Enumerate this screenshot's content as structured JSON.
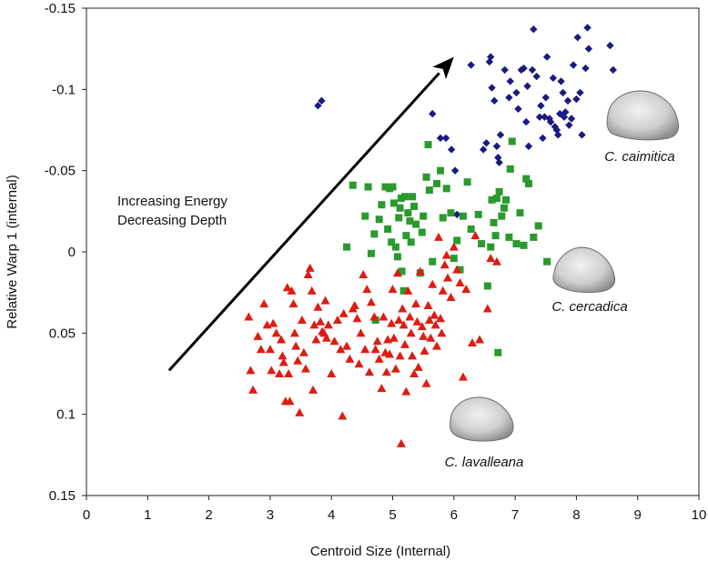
{
  "chart_data": {
    "type": "scatter",
    "xlabel": "Centroid Size (Internal)",
    "ylabel": "Relative Warp 1 (internal)",
    "xlim": [
      0,
      10
    ],
    "ylim": [
      0.15,
      -0.15
    ],
    "y_inverted": true,
    "x_ticks": [
      0,
      1,
      2,
      3,
      4,
      5,
      6,
      7,
      8,
      9,
      10
    ],
    "x_tick_labels": [
      "0",
      "1",
      "2",
      "3",
      "4",
      "5",
      "6",
      "7",
      "8",
      "9",
      "10"
    ],
    "y_ticks": [
      -0.15,
      -0.1,
      -0.05,
      0,
      0.05,
      0.1,
      0.15
    ],
    "y_tick_labels": [
      "-0.15",
      "-0.1",
      "-0.05",
      "0",
      "0.05",
      "0.1",
      "0.15"
    ],
    "grid": false,
    "annotation_lines": [
      "Increasing Energy",
      "Decreasing Depth"
    ],
    "arrow": {
      "from": [
        1.35,
        0.073
      ],
      "to": [
        6.0,
        -0.12
      ]
    },
    "series": [
      {
        "name": "C. caimitica",
        "marker": "diamond",
        "color": "#1a1a80",
        "points": [
          [
            3.78,
            -0.09
          ],
          [
            3.84,
            -0.093
          ],
          [
            5.65,
            -0.085
          ],
          [
            5.78,
            -0.07
          ],
          [
            5.87,
            -0.07
          ],
          [
            5.96,
            -0.063
          ],
          [
            6.02,
            -0.05
          ],
          [
            6.05,
            -0.023
          ],
          [
            6.28,
            -0.115
          ],
          [
            6.48,
            -0.063
          ],
          [
            6.53,
            -0.067
          ],
          [
            6.58,
            -0.117
          ],
          [
            6.6,
            -0.12
          ],
          [
            6.62,
            -0.101
          ],
          [
            6.66,
            -0.093
          ],
          [
            6.7,
            -0.065
          ],
          [
            6.72,
            -0.058
          ],
          [
            6.74,
            -0.055
          ],
          [
            6.76,
            -0.072
          ],
          [
            6.83,
            -0.112
          ],
          [
            6.9,
            -0.095
          ],
          [
            6.92,
            -0.105
          ],
          [
            7.02,
            -0.098
          ],
          [
            7.05,
            -0.088
          ],
          [
            7.1,
            -0.112
          ],
          [
            7.14,
            -0.113
          ],
          [
            7.18,
            -0.08
          ],
          [
            7.2,
            -0.102
          ],
          [
            7.22,
            -0.065
          ],
          [
            7.28,
            -0.112
          ],
          [
            7.3,
            -0.137
          ],
          [
            7.35,
            -0.108
          ],
          [
            7.4,
            -0.083
          ],
          [
            7.42,
            -0.09
          ],
          [
            7.45,
            -0.07
          ],
          [
            7.48,
            -0.083
          ],
          [
            7.5,
            -0.095
          ],
          [
            7.52,
            -0.12
          ],
          [
            7.56,
            -0.082
          ],
          [
            7.58,
            -0.08
          ],
          [
            7.62,
            -0.107
          ],
          [
            7.65,
            -0.077
          ],
          [
            7.68,
            -0.075
          ],
          [
            7.7,
            -0.072
          ],
          [
            7.73,
            -0.085
          ],
          [
            7.75,
            -0.105
          ],
          [
            7.78,
            -0.098
          ],
          [
            7.8,
            -0.083
          ],
          [
            7.82,
            -0.086
          ],
          [
            7.86,
            -0.093
          ],
          [
            7.88,
            -0.078
          ],
          [
            7.92,
            -0.082
          ],
          [
            7.95,
            -0.115
          ],
          [
            8.0,
            -0.094
          ],
          [
            8.02,
            -0.132
          ],
          [
            8.06,
            -0.098
          ],
          [
            8.09,
            -0.072
          ],
          [
            8.15,
            -0.113
          ],
          [
            8.18,
            -0.138
          ],
          [
            8.2,
            -0.125
          ],
          [
            8.55,
            -0.127
          ],
          [
            8.6,
            -0.112
          ]
        ]
      },
      {
        "name": "C. cercadica",
        "marker": "square",
        "color": "#2a9a2e",
        "points": [
          [
            4.25,
            -0.003
          ],
          [
            4.35,
            -0.041
          ],
          [
            4.55,
            -0.022
          ],
          [
            4.6,
            -0.04
          ],
          [
            4.65,
            0.001
          ],
          [
            4.7,
            -0.011
          ],
          [
            4.72,
            0.042
          ],
          [
            4.78,
            -0.02
          ],
          [
            4.82,
            -0.029
          ],
          [
            4.88,
            -0.04
          ],
          [
            4.92,
            -0.014
          ],
          [
            4.95,
            -0.039
          ],
          [
            4.98,
            -0.006
          ],
          [
            5.0,
            -0.04
          ],
          [
            5.02,
            -0.03
          ],
          [
            5.05,
            -0.003
          ],
          [
            5.08,
            0.003
          ],
          [
            5.1,
            -0.021
          ],
          [
            5.12,
            -0.027
          ],
          [
            5.14,
            -0.033
          ],
          [
            5.15,
            0.012
          ],
          [
            5.18,
            0.024
          ],
          [
            5.2,
            -0.034
          ],
          [
            5.22,
            -0.01
          ],
          [
            5.25,
            -0.024
          ],
          [
            5.28,
            -0.019
          ],
          [
            5.3,
            -0.006
          ],
          [
            5.32,
            -0.034
          ],
          [
            5.35,
            -0.028
          ],
          [
            5.38,
            -0.017
          ],
          [
            5.45,
            0.013
          ],
          [
            5.48,
            -0.012
          ],
          [
            5.5,
            -0.022
          ],
          [
            5.55,
            -0.046
          ],
          [
            5.58,
            -0.066
          ],
          [
            5.6,
            -0.038
          ],
          [
            5.65,
            0.006
          ],
          [
            5.72,
            -0.042
          ],
          [
            5.78,
            -0.05
          ],
          [
            5.82,
            -0.021
          ],
          [
            5.88,
            -0.039
          ],
          [
            5.95,
            -0.024
          ],
          [
            6.0,
            0.004
          ],
          [
            6.05,
            -0.007
          ],
          [
            6.1,
            0.011
          ],
          [
            6.15,
            -0.022
          ],
          [
            6.22,
            -0.043
          ],
          [
            6.28,
            -0.014
          ],
          [
            6.4,
            -0.023
          ],
          [
            6.45,
            -0.005
          ],
          [
            6.55,
            0.021
          ],
          [
            6.6,
            -0.003
          ],
          [
            6.62,
            -0.032
          ],
          [
            6.65,
            -0.018
          ],
          [
            6.68,
            -0.01
          ],
          [
            6.7,
            -0.033
          ],
          [
            6.72,
            0.062
          ],
          [
            6.74,
            -0.037
          ],
          [
            6.78,
            -0.022
          ],
          [
            6.82,
            -0.027
          ],
          [
            6.85,
            -0.032
          ],
          [
            6.9,
            -0.009
          ],
          [
            6.92,
            -0.051
          ],
          [
            6.95,
            -0.068
          ],
          [
            7.02,
            -0.005
          ],
          [
            7.08,
            -0.024
          ],
          [
            7.14,
            -0.004
          ],
          [
            7.18,
            -0.045
          ],
          [
            7.22,
            -0.042
          ],
          [
            7.3,
            -0.009
          ],
          [
            7.38,
            -0.016
          ],
          [
            7.52,
            0.006
          ]
        ]
      },
      {
        "name": "C. lavalleana",
        "marker": "triangle",
        "color": "#dd1c12",
        "points": [
          [
            2.65,
            0.04
          ],
          [
            2.68,
            0.073
          ],
          [
            2.72,
            0.085
          ],
          [
            2.8,
            0.052
          ],
          [
            2.85,
            0.06
          ],
          [
            2.9,
            0.032
          ],
          [
            2.95,
            0.045
          ],
          [
            3.0,
            0.06
          ],
          [
            3.02,
            0.073
          ],
          [
            3.05,
            0.044
          ],
          [
            3.1,
            0.05
          ],
          [
            3.15,
            0.075
          ],
          [
            3.18,
            0.054
          ],
          [
            3.2,
            0.064
          ],
          [
            3.22,
            0.068
          ],
          [
            3.25,
            0.092
          ],
          [
            3.28,
            0.022
          ],
          [
            3.3,
            0.075
          ],
          [
            3.32,
            0.092
          ],
          [
            3.35,
            0.024
          ],
          [
            3.38,
            0.032
          ],
          [
            3.4,
            0.05
          ],
          [
            3.42,
            0.058
          ],
          [
            3.45,
            0.067
          ],
          [
            3.48,
            0.099
          ],
          [
            3.52,
            0.042
          ],
          [
            3.55,
            0.062
          ],
          [
            3.58,
            0.072
          ],
          [
            3.62,
            0.014
          ],
          [
            3.65,
            0.01
          ],
          [
            3.68,
            0.024
          ],
          [
            3.7,
            0.085
          ],
          [
            3.72,
            0.045
          ],
          [
            3.75,
            0.054
          ],
          [
            3.78,
            0.034
          ],
          [
            3.82,
            0.043
          ],
          [
            3.85,
            0.049
          ],
          [
            3.88,
            0.05
          ],
          [
            3.9,
            0.03
          ],
          [
            3.92,
            0.053
          ],
          [
            3.95,
            0.045
          ],
          [
            4.0,
            0.075
          ],
          [
            4.05,
            0.055
          ],
          [
            4.1,
            0.042
          ],
          [
            4.15,
            0.06
          ],
          [
            4.18,
            0.101
          ],
          [
            4.2,
            0.038
          ],
          [
            4.25,
            0.058
          ],
          [
            4.3,
            0.066
          ],
          [
            4.35,
            0.035
          ],
          [
            4.38,
            0.033
          ],
          [
            4.42,
            0.041
          ],
          [
            4.45,
            0.069
          ],
          [
            4.48,
            0.05
          ],
          [
            4.52,
            0.014
          ],
          [
            4.55,
            0.06
          ],
          [
            4.58,
            0.023
          ],
          [
            4.62,
            0.074
          ],
          [
            4.65,
            0.031
          ],
          [
            4.7,
            0.04
          ],
          [
            4.72,
            0.06
          ],
          [
            4.75,
            0.055
          ],
          [
            4.78,
            0.066
          ],
          [
            4.82,
            0.084
          ],
          [
            4.85,
            0.04
          ],
          [
            4.88,
            0.062
          ],
          [
            4.9,
            0.074
          ],
          [
            4.92,
            0.054
          ],
          [
            4.95,
            0.063
          ],
          [
            4.98,
            0.044
          ],
          [
            5.0,
            0.023
          ],
          [
            5.02,
            0.053
          ],
          [
            5.05,
            0.072
          ],
          [
            5.08,
            0.013
          ],
          [
            5.1,
            0.042
          ],
          [
            5.12,
            0.064
          ],
          [
            5.14,
            0.118
          ],
          [
            5.16,
            0.035
          ],
          [
            5.18,
            0.045
          ],
          [
            5.2,
            0.057
          ],
          [
            5.22,
            0.086
          ],
          [
            5.25,
            0.024
          ],
          [
            5.28,
            0.04
          ],
          [
            5.3,
            0.05
          ],
          [
            5.32,
            0.064
          ],
          [
            5.35,
            0.075
          ],
          [
            5.38,
            0.032
          ],
          [
            5.4,
            0.043
          ],
          [
            5.42,
            0.071
          ],
          [
            5.45,
            0.012
          ],
          [
            5.48,
            0.046
          ],
          [
            5.5,
            0.052
          ],
          [
            5.52,
            0.061
          ],
          [
            5.55,
            0.081
          ],
          [
            5.58,
            0.033
          ],
          [
            5.6,
            0.042
          ],
          [
            5.62,
            0.053
          ],
          [
            5.65,
            0.02
          ],
          [
            5.68,
            0.039
          ],
          [
            5.7,
            0.045
          ],
          [
            5.72,
            0.058
          ],
          [
            5.75,
            -0.009
          ],
          [
            5.78,
            0.041
          ],
          [
            5.8,
            0.05
          ],
          [
            5.82,
            0.024
          ],
          [
            5.85,
            0.008
          ],
          [
            5.88,
            0.002
          ],
          [
            5.9,
            0.016
          ],
          [
            5.95,
            0.028
          ],
          [
            6.0,
            -0.003
          ],
          [
            6.05,
            0.011
          ],
          [
            6.1,
            0.019
          ],
          [
            6.15,
            0.077
          ],
          [
            6.2,
            0.023
          ],
          [
            6.3,
            0.056
          ],
          [
            6.35,
            -0.01
          ],
          [
            6.42,
            0.054
          ],
          [
            6.55,
            0.035
          ],
          [
            6.6,
            0.004
          ],
          [
            6.7,
            0.006
          ]
        ]
      }
    ],
    "species_labels": [
      "C. caimitica",
      "C. cercadica",
      "C. lavalleana"
    ]
  }
}
